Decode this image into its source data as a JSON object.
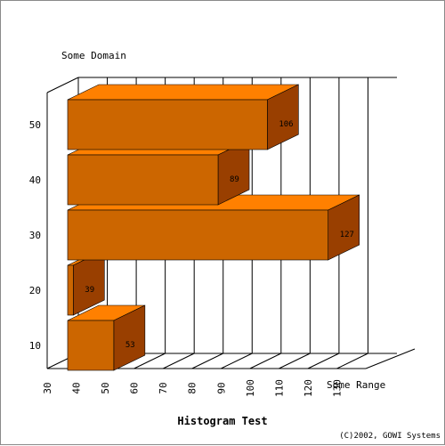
{
  "chart_data": {
    "type": "bar",
    "orientation": "horizontal",
    "title": "Histogram Test",
    "ylabel": "Some Domain",
    "xlabel": "Some Range",
    "footer": "(C)2002, GOWI Systems",
    "categories": [
      "10",
      "20",
      "30",
      "40",
      "50"
    ],
    "values": [
      53,
      39,
      127,
      89,
      106
    ],
    "xlim": [
      30,
      140
    ],
    "x_ticks": [
      "30",
      "40",
      "50",
      "60",
      "70",
      "80",
      "90",
      "100",
      "110",
      "120",
      "130"
    ],
    "grid": true,
    "legend": "none"
  },
  "colors": {
    "bar_front": "#cc6600",
    "bar_top": "#ff8000",
    "bar_side": "#993f00",
    "grid": "#000000"
  }
}
